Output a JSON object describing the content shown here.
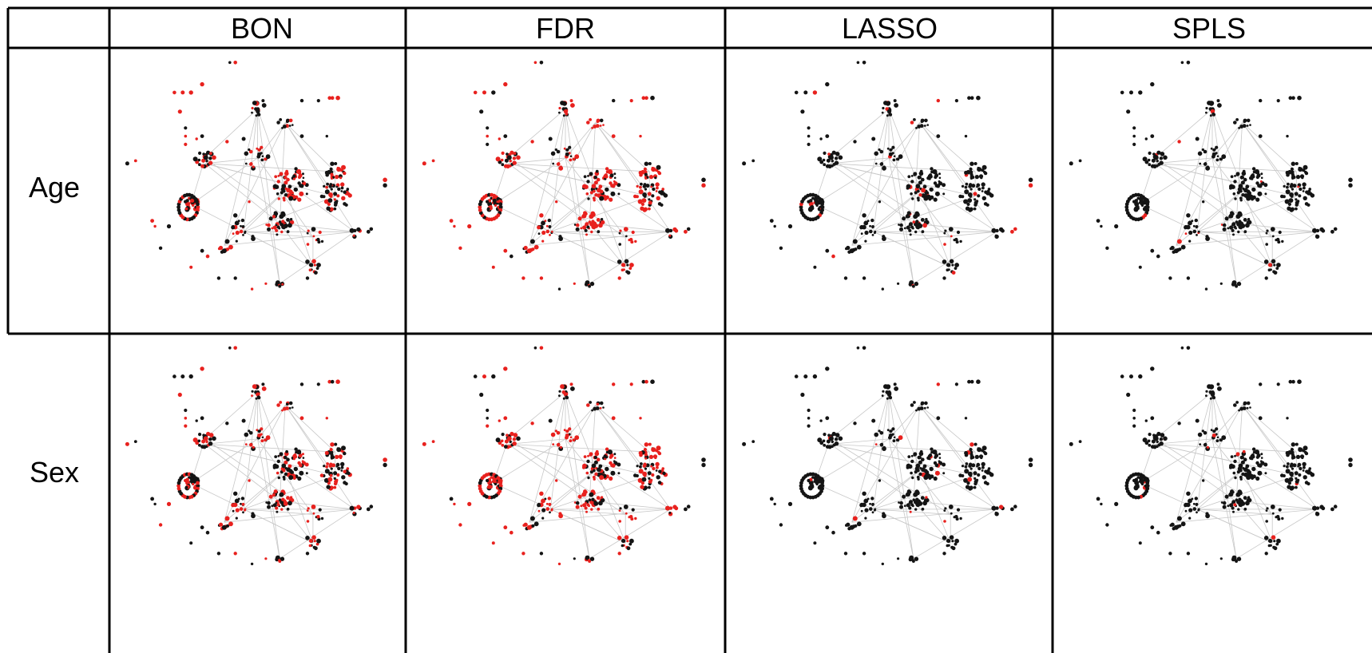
{
  "columns": [
    "BON",
    "FDR",
    "LASSO",
    "SPLS"
  ],
  "rows": [
    "Age",
    "Sex"
  ],
  "colors": {
    "selected": "#e8211e",
    "unselected": "#141414",
    "edge": "#c8c8c8",
    "border": "#000000"
  },
  "selection_level": {
    "Age": {
      "BON": 0.45,
      "FDR": 0.62,
      "LASSO": 0.08,
      "SPLS": 0.02
    },
    "Sex": {
      "BON": 0.42,
      "FDR": 0.6,
      "LASSO": 0.03,
      "SPLS": 0.02
    }
  }
}
